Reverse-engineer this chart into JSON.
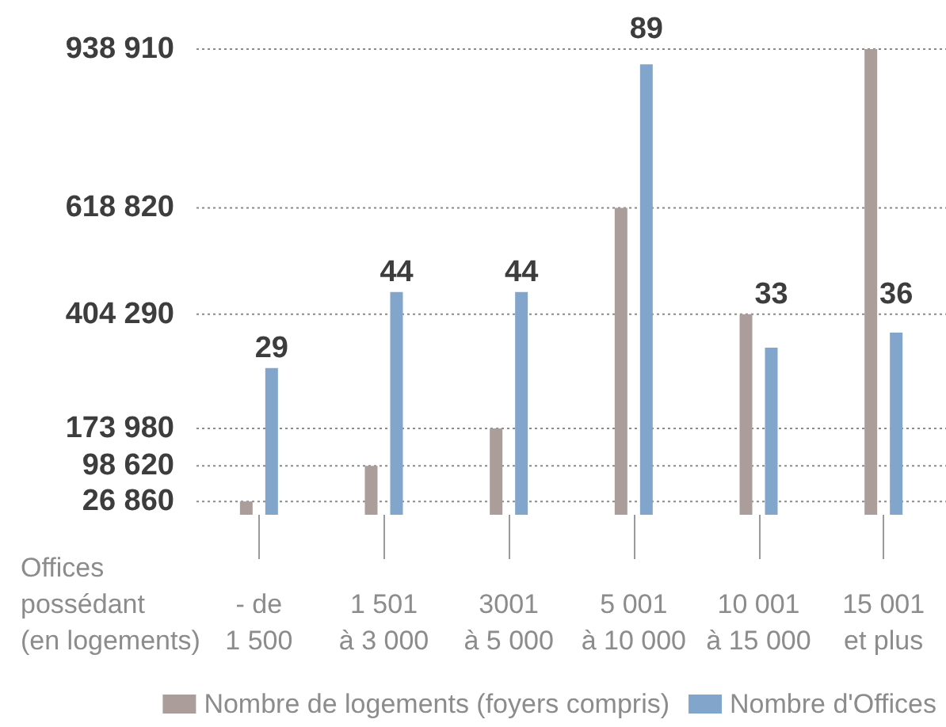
{
  "chart_data": {
    "type": "bar",
    "categories": [
      "- de\n1 500",
      "1 501\nà 3 000",
      "3001\nà 5 000",
      "5 001\nà 10 000",
      "10 001\nà 15 000",
      "15 001\net plus"
    ],
    "xlabel": "Offices\npossédant\n(en logements)",
    "series": [
      {
        "name": "Nombre de logements (foyers compris)",
        "color": "#ab9e9a",
        "values": [
          26860,
          98620,
          173980,
          618820,
          404290,
          938910
        ]
      },
      {
        "name": "Nombre d'Offices",
        "color": "#81a5cb",
        "axis": "y2",
        "values": [
          29,
          44,
          44,
          89,
          33,
          36
        ],
        "value_labels": [
          "29",
          "44",
          "44",
          "89",
          "33",
          "36"
        ]
      }
    ],
    "ylim": [
      0,
      938910
    ],
    "yticks": [
      {
        "value": 26860,
        "label": "26 860"
      },
      {
        "value": 98620,
        "label": "98 620"
      },
      {
        "value": 173980,
        "label": "173 980"
      },
      {
        "value": 404290,
        "label": "404 290"
      },
      {
        "value": 618820,
        "label": "618 820"
      },
      {
        "value": 938910,
        "label": "938 910"
      }
    ],
    "y2lim": [
      0,
      92
    ],
    "grid": "y",
    "legend": "bottom right"
  }
}
